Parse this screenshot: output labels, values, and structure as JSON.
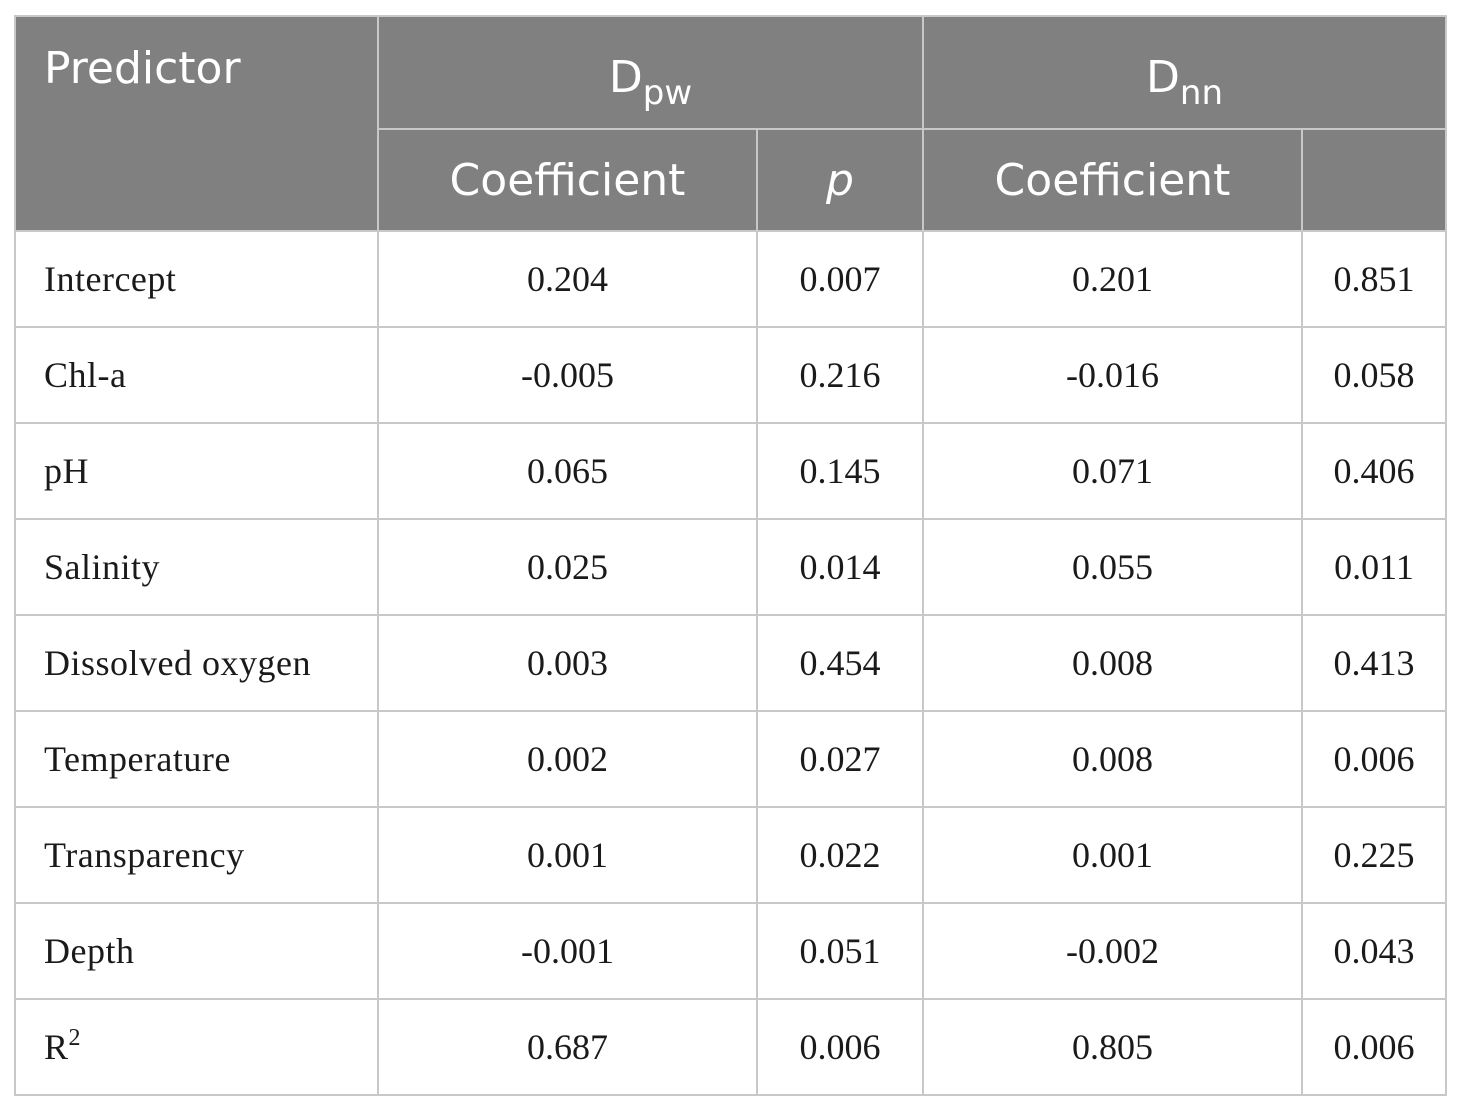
{
  "header": {
    "predictor": "Predictor",
    "group1": {
      "main": "D",
      "sub": "pw"
    },
    "group2": {
      "main": "D",
      "sub": "nn"
    },
    "sub_coefficient": "Coefficient",
    "sub_p": "p",
    "sub_blank": ""
  },
  "rows": [
    {
      "label": "Intercept",
      "sup": "",
      "dpw_coef": "0.204",
      "dpw_p": "0.007",
      "dnn_coef": "0.201",
      "dnn_p": "0.851"
    },
    {
      "label": "Chl-a",
      "sup": "",
      "dpw_coef": "-0.005",
      "dpw_p": "0.216",
      "dnn_coef": "-0.016",
      "dnn_p": "0.058"
    },
    {
      "label": "pH",
      "sup": "",
      "dpw_coef": "0.065",
      "dpw_p": "0.145",
      "dnn_coef": "0.071",
      "dnn_p": "0.406"
    },
    {
      "label": "Salinity",
      "sup": "",
      "dpw_coef": "0.025",
      "dpw_p": "0.014",
      "dnn_coef": "0.055",
      "dnn_p": "0.011"
    },
    {
      "label": "Dissolved oxygen",
      "sup": "",
      "dpw_coef": "0.003",
      "dpw_p": "0.454",
      "dnn_coef": "0.008",
      "dnn_p": "0.413"
    },
    {
      "label": "Temperature",
      "sup": "",
      "dpw_coef": "0.002",
      "dpw_p": "0.027",
      "dnn_coef": "0.008",
      "dnn_p": "0.006"
    },
    {
      "label": "Transparency",
      "sup": "",
      "dpw_coef": "0.001",
      "dpw_p": "0.022",
      "dnn_coef": "0.001",
      "dnn_p": "0.225"
    },
    {
      "label": "Depth",
      "sup": "",
      "dpw_coef": "-0.001",
      "dpw_p": "0.051",
      "dnn_coef": "-0.002",
      "dnn_p": "0.043"
    },
    {
      "label": "R",
      "sup": "2",
      "dpw_coef": "0.687",
      "dpw_p": "0.006",
      "dnn_coef": "0.805",
      "dnn_p": "0.006"
    }
  ]
}
